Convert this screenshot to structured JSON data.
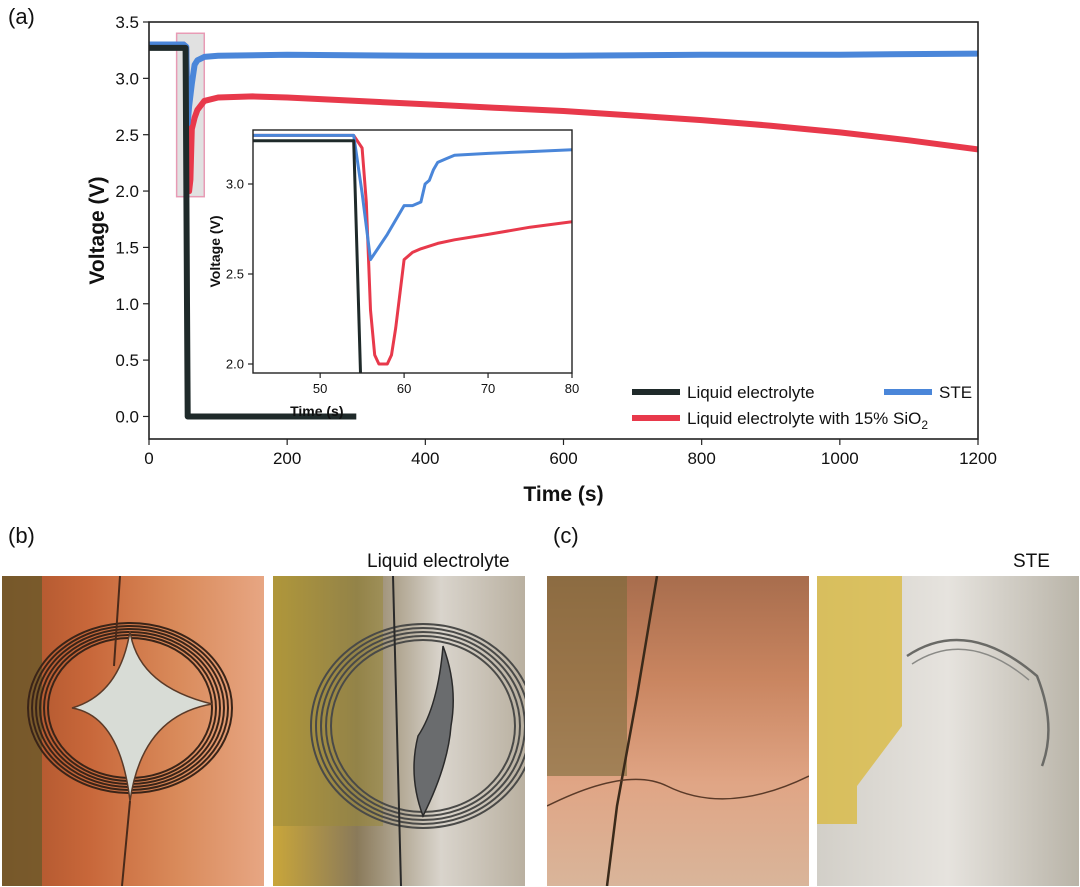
{
  "panels": {
    "a": "(a)",
    "b": "(b)",
    "c": "(c)"
  },
  "captions": {
    "b": "Liquid electrolyte",
    "c": "STE"
  },
  "colors": {
    "liquid": "#1f2a2a",
    "sio2": "#e8394b",
    "ste": "#4a86d9",
    "highlight_fill": "#c8c8c8",
    "highlight_stroke": "#e89bb5"
  },
  "chart_data": [
    {
      "type": "line",
      "xlabel": "Time (s)",
      "ylabel": "Voltage (V)",
      "xlim": [
        0,
        1200
      ],
      "ylim": [
        -0.2,
        3.5
      ],
      "xticks": [
        "0",
        "200",
        "400",
        "600",
        "800",
        "1000",
        "1200"
      ],
      "yticks": [
        "0.0",
        "0.5",
        "1.0",
        "1.5",
        "2.0",
        "2.5",
        "3.0",
        "3.5"
      ],
      "legend_position": "bottom-right",
      "highlight_region": {
        "x": [
          40,
          80
        ],
        "y": [
          1.95,
          3.4
        ]
      },
      "series": [
        {
          "name": "Liquid electrolyte",
          "color_key": "liquid",
          "x": [
            0,
            50,
            53,
            55,
            56,
            300
          ],
          "y": [
            3.27,
            3.27,
            3.27,
            1.0,
            0.0,
            0.0
          ]
        },
        {
          "name": "STE",
          "color_key": "ste",
          "x": [
            0,
            50,
            54,
            56,
            58,
            62,
            66,
            70,
            80,
            100,
            200,
            400,
            600,
            800,
            1000,
            1200
          ],
          "y": [
            3.3,
            3.3,
            3.28,
            2.6,
            2.75,
            2.95,
            3.12,
            3.16,
            3.19,
            3.2,
            3.21,
            3.2,
            3.2,
            3.21,
            3.21,
            3.22
          ]
        },
        {
          "name": "Liquid electrolyte with 15% SiO",
          "name_subscript": "2",
          "color_key": "sio2",
          "x": [
            0,
            50,
            54,
            56,
            57,
            58,
            60,
            62,
            66,
            70,
            80,
            100,
            150,
            200,
            300,
            400,
            500,
            600,
            700,
            800,
            900,
            1000,
            1100,
            1200
          ],
          "y": [
            3.3,
            3.3,
            3.25,
            2.4,
            2.05,
            2.0,
            2.1,
            2.55,
            2.65,
            2.72,
            2.8,
            2.83,
            2.84,
            2.83,
            2.8,
            2.77,
            2.74,
            2.71,
            2.67,
            2.63,
            2.58,
            2.52,
            2.45,
            2.37
          ]
        }
      ]
    },
    {
      "type": "line",
      "role": "inset",
      "xlabel": "Time (s)",
      "ylabel": "Voltage (V)",
      "xlim": [
        42,
        80
      ],
      "ylim": [
        1.95,
        3.3
      ],
      "xticks": [
        "50",
        "60",
        "70",
        "80"
      ],
      "yticks": [
        "2.0",
        "2.5",
        "3.0"
      ],
      "series": [
        {
          "color_key": "liquid",
          "x": [
            42,
            54,
            54.4,
            54.8
          ],
          "y": [
            3.24,
            3.24,
            2.6,
            1.95
          ]
        },
        {
          "color_key": "ste",
          "x": [
            42,
            54,
            55,
            56,
            57,
            58,
            59,
            60,
            61,
            62,
            62.5,
            63,
            63.5,
            64,
            65,
            66,
            70,
            75,
            80
          ],
          "y": [
            3.27,
            3.27,
            2.95,
            2.58,
            2.65,
            2.72,
            2.8,
            2.88,
            2.88,
            2.9,
            3.0,
            3.02,
            3.08,
            3.12,
            3.14,
            3.16,
            3.17,
            3.18,
            3.19
          ]
        },
        {
          "color_key": "sio2",
          "x": [
            42,
            54,
            55,
            55.5,
            56,
            56.5,
            57,
            58,
            58.5,
            59,
            60,
            61,
            62,
            64,
            66,
            70,
            75,
            80
          ],
          "y": [
            3.27,
            3.27,
            3.2,
            2.9,
            2.3,
            2.05,
            2.0,
            2.0,
            2.05,
            2.2,
            2.58,
            2.62,
            2.64,
            2.67,
            2.69,
            2.72,
            2.76,
            2.79
          ]
        }
      ]
    }
  ],
  "photos": [
    {
      "name": "photo-b-copper",
      "palette": [
        "#c8673a",
        "#d98a5a",
        "#a8512a",
        "#e7a683"
      ]
    },
    {
      "name": "photo-b-aluminum",
      "palette": [
        "#b9b0a0",
        "#d9d4cc",
        "#8a7a5a",
        "#c9a63a"
      ]
    },
    {
      "name": "photo-c-copper",
      "palette": [
        "#c98560",
        "#e0a585",
        "#a86d4d",
        "#d9b59a"
      ]
    },
    {
      "name": "photo-c-aluminum",
      "palette": [
        "#d2cfc8",
        "#e6e3de",
        "#b9b4a8",
        "#d9b83a"
      ]
    }
  ]
}
